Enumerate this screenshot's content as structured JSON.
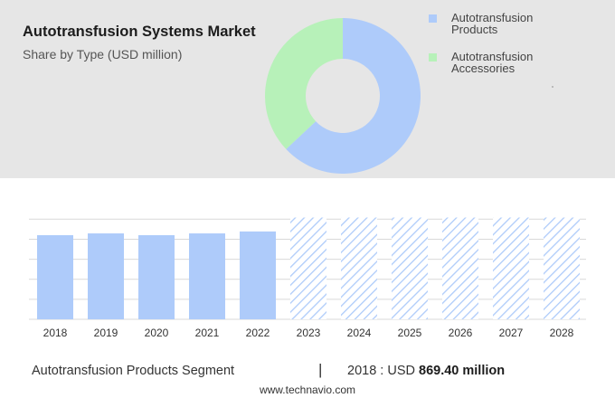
{
  "header": {
    "title": "Autotransfusion Systems Market",
    "subtitle": "Share by Type (USD million)"
  },
  "legend": [
    {
      "label": "Autotransfusion Products",
      "color": "#aecbfa"
    },
    {
      "label": "Autotransfusion Accessories",
      "color": "#b7f1b9"
    }
  ],
  "chart_data": [
    {
      "type": "pie",
      "title": "Share by Type (USD million)",
      "categories": [
        "Autotransfusion Products",
        "Autotransfusion Accessories"
      ],
      "values": [
        63,
        37
      ],
      "colors": [
        "#aecbfa",
        "#b7f1b9"
      ],
      "donut": true
    },
    {
      "type": "bar",
      "categories": [
        "2018",
        "2019",
        "2020",
        "2021",
        "2022",
        "2023",
        "2024",
        "2025",
        "2026",
        "2027",
        "2028"
      ],
      "values": [
        869.4,
        888,
        869.4,
        888,
        908,
        1052,
        1052,
        1052,
        1052,
        1052,
        1052
      ],
      "forecast_from": "2023",
      "ylim": [
        0,
        1150
      ],
      "grid": true,
      "color": "#aecbfa",
      "forecast_color": "#aecbfa"
    }
  ],
  "footer": {
    "segment": "Autotransfusion Products Segment",
    "divider": "|",
    "year_label": "2018 : USD",
    "value": "869.40 million",
    "source": "www.technavio.com"
  }
}
